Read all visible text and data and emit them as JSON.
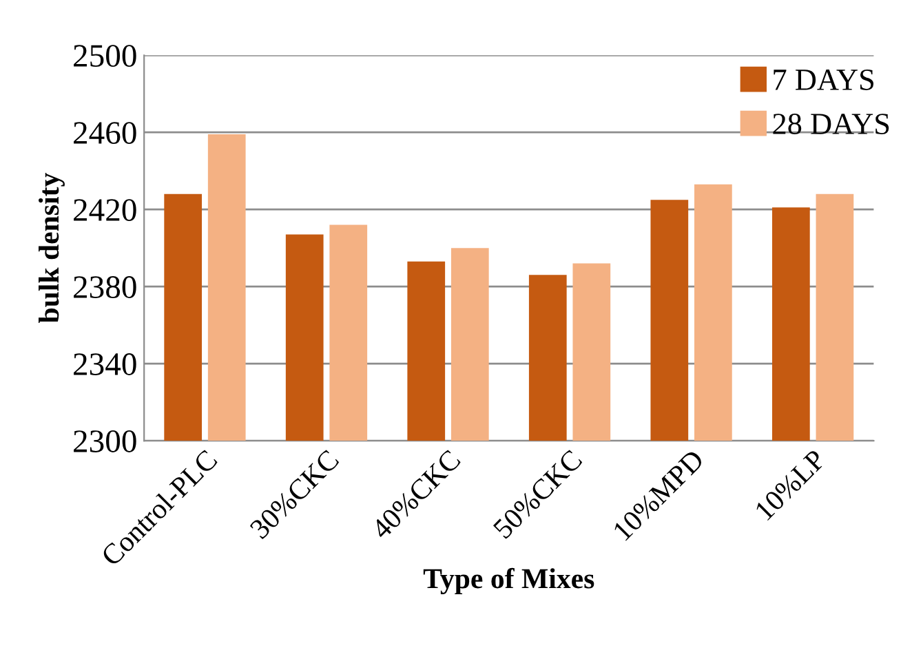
{
  "chart_data": {
    "type": "bar",
    "xlabel": "Type of Mixes",
    "ylabel": "bulk density",
    "categories": [
      "Control-PLC",
      "30%CKC",
      "40%CKC",
      "50%CKC",
      "10%MPD",
      "10%LP"
    ],
    "series": [
      {
        "name": "7 DAYS",
        "color": "#c55a11",
        "values": [
          2428,
          2407,
          2393,
          2386,
          2425,
          2421
        ]
      },
      {
        "name": "28 DAYS",
        "color": "#f4b183",
        "values": [
          2459,
          2412,
          2400,
          2392,
          2433,
          2428
        ]
      }
    ],
    "ylim": [
      2300,
      2500
    ],
    "yticks": [
      2300,
      2340,
      2380,
      2420,
      2460,
      2500
    ],
    "grid": "y",
    "legend": "top right"
  }
}
